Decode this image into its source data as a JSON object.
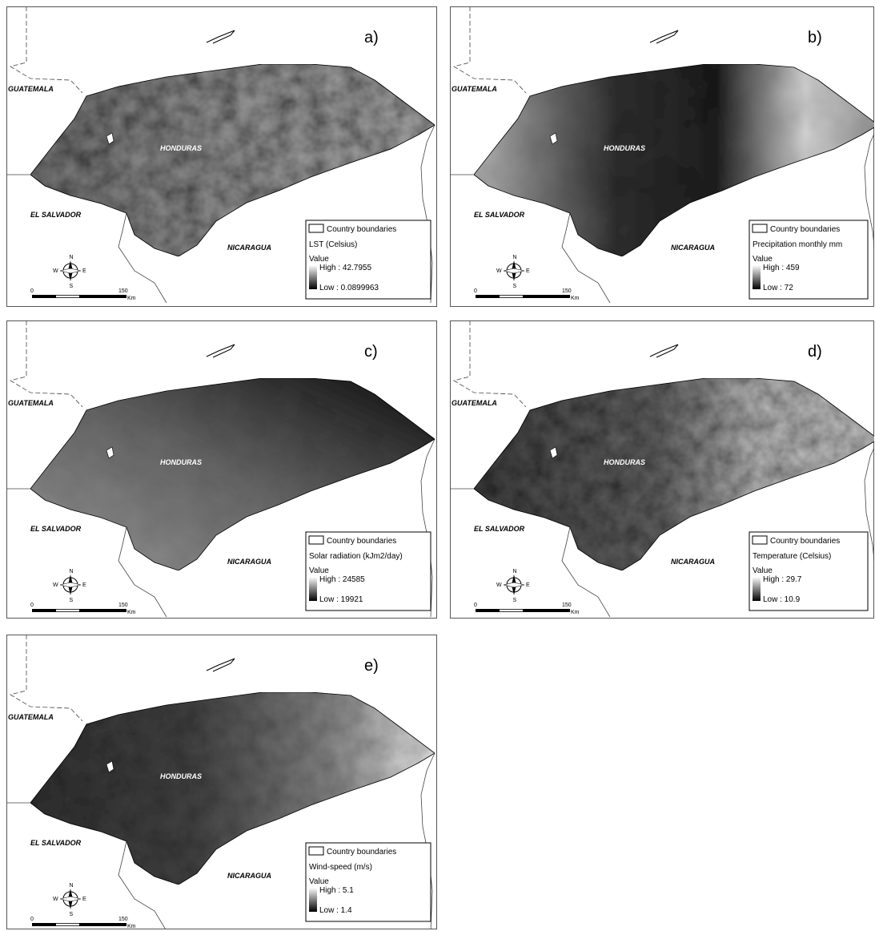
{
  "common": {
    "guatemala": "GUATEMALA",
    "honduras": "HONDURAS",
    "el_salvador": "EL SALVADOR",
    "nicaragua": "NICARAGUA",
    "country_boundaries": "Country boundaries",
    "value": "Value",
    "scale_start": "0",
    "scale_end": "150",
    "scale_unit": "Km",
    "north": "N",
    "south": "S",
    "east": "E",
    "west": "W"
  },
  "panels": [
    {
      "letter": "a)",
      "legend_title": "LST (Celsius)",
      "high": "High : 42.7955",
      "low": "Low : 0.0899963"
    },
    {
      "letter": "b)",
      "legend_title": "Precipitation monthly mm",
      "high": "High : 459",
      "low": "Low : 72"
    },
    {
      "letter": "c)",
      "legend_title": "Solar radiation (kJm2/day)",
      "high": "High : 24585",
      "low": "Low : 19921"
    },
    {
      "letter": "d)",
      "legend_title": "Temperature (Celsius)",
      "high": "High : 29.7",
      "low": "Low : 10.9"
    },
    {
      "letter": "e)",
      "legend_title": "Wind-speed (m/s)",
      "high": "High : 5.1",
      "low": "Low : 1.4"
    }
  ]
}
